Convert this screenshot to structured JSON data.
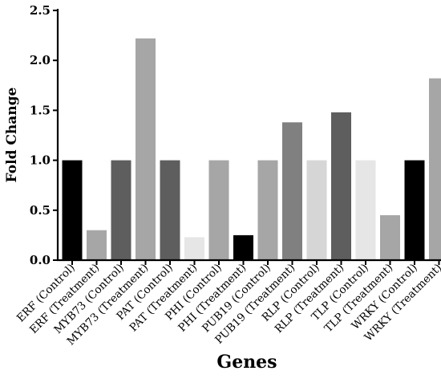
{
  "chart_data": {
    "type": "bar",
    "title": "",
    "xlabel": "Genes",
    "ylabel": "Fold Change",
    "ylim": [
      0,
      2.5
    ],
    "yticks": [
      "0.0",
      "0.5",
      "1.0",
      "1.5",
      "2.0",
      "2.5"
    ],
    "grid": false,
    "categories": [
      "ERF (Control)",
      "ERF (Treatment)",
      "MYB73 (Control)",
      "MYB73 (Treatment)",
      "PAT (Control)",
      "PAT (Treatment)",
      "PHI (Control)",
      "PHI (Treatment)",
      "PUB19 (Control)",
      "PUB19 (Treatment)",
      "RLP (Control)",
      "RLP (Treatment)",
      "TLP (Control)",
      "TLP (Treatment)",
      "WRKY (Control)",
      "WRKY (Treatment)"
    ],
    "values": [
      1.0,
      0.3,
      1.0,
      2.22,
      1.0,
      0.23,
      1.0,
      0.25,
      1.0,
      1.38,
      1.0,
      1.48,
      1.0,
      0.45,
      1.0,
      1.82
    ],
    "colors": [
      "#000000",
      "#a6a6a6",
      "#5e5e5e",
      "#a6a6a6",
      "#5e5e5e",
      "#e6e6e6",
      "#a6a6a6",
      "#000000",
      "#a6a6a6",
      "#808080",
      "#d6d6d6",
      "#5e5e5e",
      "#e6e6e6",
      "#a6a6a6",
      "#000000",
      "#a6a6a6"
    ]
  }
}
